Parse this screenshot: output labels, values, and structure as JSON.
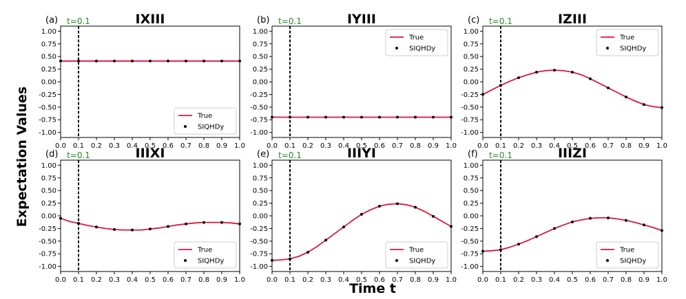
{
  "figure": {
    "ylabel": "Expectation Values",
    "xlabel": "Time t"
  },
  "colors": {
    "true_line": "#dc143c",
    "points": "#000000",
    "vline": "#000000",
    "t_label": "#228b22"
  },
  "legend": {
    "line_label": "True",
    "points_label": "SIQHDy"
  },
  "chart_data": [
    {
      "type": "line",
      "panel_label": "(a)",
      "title": "IXIII",
      "marker_label": "t=0.1",
      "marker_x": 0.1,
      "legend_position": "lower-right",
      "xlim": [
        0.0,
        1.0
      ],
      "ylim": [
        -1.1,
        1.1
      ],
      "xticks": [
        "0.0",
        "0.1",
        "0.2",
        "0.3",
        "0.4",
        "0.5",
        "0.6",
        "0.7",
        "0.8",
        "0.9",
        "1.0"
      ],
      "yticks": [
        "-1.00",
        "-0.75",
        "-0.50",
        "-0.25",
        "0.00",
        "0.25",
        "0.50",
        "0.75",
        "1.00"
      ],
      "series": [
        {
          "name": "True",
          "kind": "line",
          "x": [
            0.0,
            0.05,
            0.1,
            0.15,
            0.2,
            0.25,
            0.3,
            0.35,
            0.4,
            0.45,
            0.5,
            0.55,
            0.6,
            0.65,
            0.7,
            0.75,
            0.8,
            0.85,
            0.9,
            0.95,
            1.0
          ],
          "y": [
            0.41,
            0.41,
            0.41,
            0.41,
            0.41,
            0.41,
            0.41,
            0.41,
            0.41,
            0.41,
            0.41,
            0.41,
            0.41,
            0.41,
            0.41,
            0.41,
            0.41,
            0.41,
            0.41,
            0.41,
            0.41
          ]
        },
        {
          "name": "SIQHDy",
          "kind": "scatter",
          "x": [
            0.0,
            0.1,
            0.2,
            0.3,
            0.4,
            0.5,
            0.6,
            0.7,
            0.8,
            0.9,
            1.0
          ],
          "y": [
            0.41,
            0.41,
            0.41,
            0.41,
            0.41,
            0.41,
            0.41,
            0.41,
            0.41,
            0.41,
            0.41
          ]
        }
      ]
    },
    {
      "type": "line",
      "panel_label": "(b)",
      "title": "IYIII",
      "marker_label": "t=0.1",
      "marker_x": 0.1,
      "legend_position": "upper-right",
      "xlim": [
        0.0,
        1.0
      ],
      "ylim": [
        -1.1,
        1.1
      ],
      "xticks": [
        "0.0",
        "0.1",
        "0.2",
        "0.3",
        "0.4",
        "0.5",
        "0.6",
        "0.7",
        "0.8",
        "0.9",
        "1.0"
      ],
      "yticks": [
        "-1.00",
        "-0.75",
        "-0.50",
        "-0.25",
        "0.00",
        "0.25",
        "0.50",
        "0.75",
        "1.00"
      ],
      "series": [
        {
          "name": "True",
          "kind": "line",
          "x": [
            0.0,
            0.05,
            0.1,
            0.15,
            0.2,
            0.25,
            0.3,
            0.35,
            0.4,
            0.45,
            0.5,
            0.55,
            0.6,
            0.65,
            0.7,
            0.75,
            0.8,
            0.85,
            0.9,
            0.95,
            1.0
          ],
          "y": [
            -0.7,
            -0.7,
            -0.7,
            -0.7,
            -0.7,
            -0.7,
            -0.7,
            -0.7,
            -0.7,
            -0.7,
            -0.7,
            -0.7,
            -0.7,
            -0.7,
            -0.7,
            -0.7,
            -0.7,
            -0.7,
            -0.7,
            -0.7,
            -0.7
          ]
        },
        {
          "name": "SIQHDy",
          "kind": "scatter",
          "x": [
            0.0,
            0.1,
            0.2,
            0.3,
            0.4,
            0.5,
            0.6,
            0.7,
            0.8,
            0.9,
            1.0
          ],
          "y": [
            -0.7,
            -0.7,
            -0.7,
            -0.7,
            -0.7,
            -0.7,
            -0.7,
            -0.7,
            -0.7,
            -0.7,
            -0.7
          ]
        }
      ]
    },
    {
      "type": "line",
      "panel_label": "(c)",
      "title": "IZIII",
      "marker_label": "t=0.1",
      "marker_x": 0.1,
      "legend_position": "upper-right",
      "xlim": [
        0.0,
        1.0
      ],
      "ylim": [
        -1.1,
        1.1
      ],
      "xticks": [
        "0.0",
        "0.1",
        "0.2",
        "0.3",
        "0.4",
        "0.5",
        "0.6",
        "0.7",
        "0.8",
        "0.9",
        "1.0"
      ],
      "yticks": [
        "-1.00",
        "-0.75",
        "-0.50",
        "-0.25",
        "0.00",
        "0.25",
        "0.50",
        "0.75",
        "1.00"
      ],
      "series": [
        {
          "name": "True",
          "kind": "line",
          "x": [
            0.0,
            0.05,
            0.1,
            0.15,
            0.2,
            0.25,
            0.3,
            0.35,
            0.4,
            0.45,
            0.5,
            0.55,
            0.6,
            0.65,
            0.7,
            0.75,
            0.8,
            0.85,
            0.9,
            0.95,
            1.0
          ],
          "y": [
            -0.25,
            -0.16,
            -0.07,
            0.01,
            0.08,
            0.14,
            0.19,
            0.22,
            0.23,
            0.22,
            0.19,
            0.14,
            0.06,
            -0.03,
            -0.12,
            -0.21,
            -0.3,
            -0.38,
            -0.45,
            -0.49,
            -0.51
          ]
        },
        {
          "name": "SIQHDy",
          "kind": "scatter",
          "x": [
            0.0,
            0.1,
            0.2,
            0.3,
            0.4,
            0.5,
            0.6,
            0.7,
            0.8,
            0.9,
            1.0
          ],
          "y": [
            -0.25,
            -0.07,
            0.08,
            0.19,
            0.23,
            0.19,
            0.06,
            -0.12,
            -0.3,
            -0.45,
            -0.51
          ]
        }
      ]
    },
    {
      "type": "line",
      "panel_label": "(d)",
      "title": "IIIXI",
      "marker_label": "t=0.1",
      "marker_x": 0.1,
      "legend_position": "lower-right",
      "xlim": [
        0.0,
        1.0
      ],
      "ylim": [
        -1.1,
        1.1
      ],
      "xticks": [
        "0.0",
        "0.1",
        "0.2",
        "0.3",
        "0.4",
        "0.5",
        "0.6",
        "0.7",
        "0.8",
        "0.9",
        "1.0"
      ],
      "yticks": [
        "-1.00",
        "-0.75",
        "-0.50",
        "-0.25",
        "0.00",
        "0.25",
        "0.50",
        "0.75",
        "1.00"
      ],
      "series": [
        {
          "name": "True",
          "kind": "line",
          "x": [
            0.0,
            0.05,
            0.1,
            0.15,
            0.2,
            0.25,
            0.3,
            0.35,
            0.4,
            0.45,
            0.5,
            0.55,
            0.6,
            0.65,
            0.7,
            0.75,
            0.8,
            0.85,
            0.9,
            0.95,
            1.0
          ],
          "y": [
            -0.05,
            -0.11,
            -0.15,
            -0.19,
            -0.22,
            -0.25,
            -0.27,
            -0.28,
            -0.28,
            -0.28,
            -0.26,
            -0.24,
            -0.21,
            -0.18,
            -0.16,
            -0.14,
            -0.13,
            -0.13,
            -0.13,
            -0.14,
            -0.16
          ]
        },
        {
          "name": "SIQHDy",
          "kind": "scatter",
          "x": [
            0.0,
            0.1,
            0.2,
            0.3,
            0.4,
            0.5,
            0.6,
            0.7,
            0.8,
            0.9,
            1.0
          ],
          "y": [
            -0.05,
            -0.15,
            -0.22,
            -0.27,
            -0.28,
            -0.26,
            -0.21,
            -0.16,
            -0.13,
            -0.13,
            -0.16
          ]
        }
      ]
    },
    {
      "type": "line",
      "panel_label": "(e)",
      "title": "IIIYI",
      "marker_label": "t=0.1",
      "marker_x": 0.1,
      "legend_position": "lower-right",
      "xlim": [
        0.0,
        1.0
      ],
      "ylim": [
        -1.1,
        1.1
      ],
      "xticks": [
        "0.0",
        "0.1",
        "0.2",
        "0.3",
        "0.4",
        "0.5",
        "0.6",
        "0.7",
        "0.8",
        "0.9",
        "1.0"
      ],
      "yticks": [
        "-1.00",
        "-0.75",
        "-0.50",
        "-0.25",
        "0.00",
        "0.25",
        "0.50",
        "0.75",
        "1.00"
      ],
      "series": [
        {
          "name": "True",
          "kind": "line",
          "x": [
            0.0,
            0.05,
            0.1,
            0.15,
            0.2,
            0.25,
            0.3,
            0.35,
            0.4,
            0.45,
            0.5,
            0.55,
            0.6,
            0.65,
            0.7,
            0.75,
            0.8,
            0.85,
            0.9,
            0.95,
            1.0
          ],
          "y": [
            -0.88,
            -0.87,
            -0.85,
            -0.8,
            -0.72,
            -0.61,
            -0.48,
            -0.35,
            -0.22,
            -0.09,
            0.03,
            0.12,
            0.19,
            0.23,
            0.24,
            0.22,
            0.17,
            0.09,
            -0.01,
            -0.11,
            -0.21
          ]
        },
        {
          "name": "SIQHDy",
          "kind": "scatter",
          "x": [
            0.0,
            0.1,
            0.2,
            0.3,
            0.4,
            0.5,
            0.6,
            0.7,
            0.8,
            0.9,
            1.0
          ],
          "y": [
            -0.88,
            -0.85,
            -0.72,
            -0.48,
            -0.22,
            0.03,
            0.19,
            0.24,
            0.17,
            -0.01,
            -0.21
          ]
        }
      ]
    },
    {
      "type": "line",
      "panel_label": "(f)",
      "title": "IIIZI",
      "marker_label": "t=0.1",
      "marker_x": 0.1,
      "legend_position": "lower-right",
      "xlim": [
        0.0,
        1.0
      ],
      "ylim": [
        -1.1,
        1.1
      ],
      "xticks": [
        "0.0",
        "0.1",
        "0.2",
        "0.3",
        "0.4",
        "0.5",
        "0.6",
        "0.7",
        "0.8",
        "0.9",
        "1.0"
      ],
      "yticks": [
        "-1.00",
        "-0.75",
        "-0.50",
        "-0.25",
        "0.00",
        "0.25",
        "0.50",
        "0.75",
        "1.00"
      ],
      "series": [
        {
          "name": "True",
          "kind": "line",
          "x": [
            0.0,
            0.05,
            0.1,
            0.15,
            0.2,
            0.25,
            0.3,
            0.35,
            0.4,
            0.45,
            0.5,
            0.55,
            0.6,
            0.65,
            0.7,
            0.75,
            0.8,
            0.85,
            0.9,
            0.95,
            1.0
          ],
          "y": [
            -0.7,
            -0.69,
            -0.67,
            -0.62,
            -0.56,
            -0.49,
            -0.41,
            -0.33,
            -0.25,
            -0.18,
            -0.12,
            -0.08,
            -0.05,
            -0.04,
            -0.04,
            -0.06,
            -0.09,
            -0.13,
            -0.18,
            -0.23,
            -0.29
          ]
        },
        {
          "name": "SIQHDy",
          "kind": "scatter",
          "x": [
            0.0,
            0.1,
            0.2,
            0.3,
            0.4,
            0.5,
            0.6,
            0.7,
            0.8,
            0.9,
            1.0
          ],
          "y": [
            -0.7,
            -0.67,
            -0.56,
            -0.41,
            -0.25,
            -0.12,
            -0.05,
            -0.04,
            -0.09,
            -0.18,
            -0.29
          ]
        }
      ]
    }
  ]
}
